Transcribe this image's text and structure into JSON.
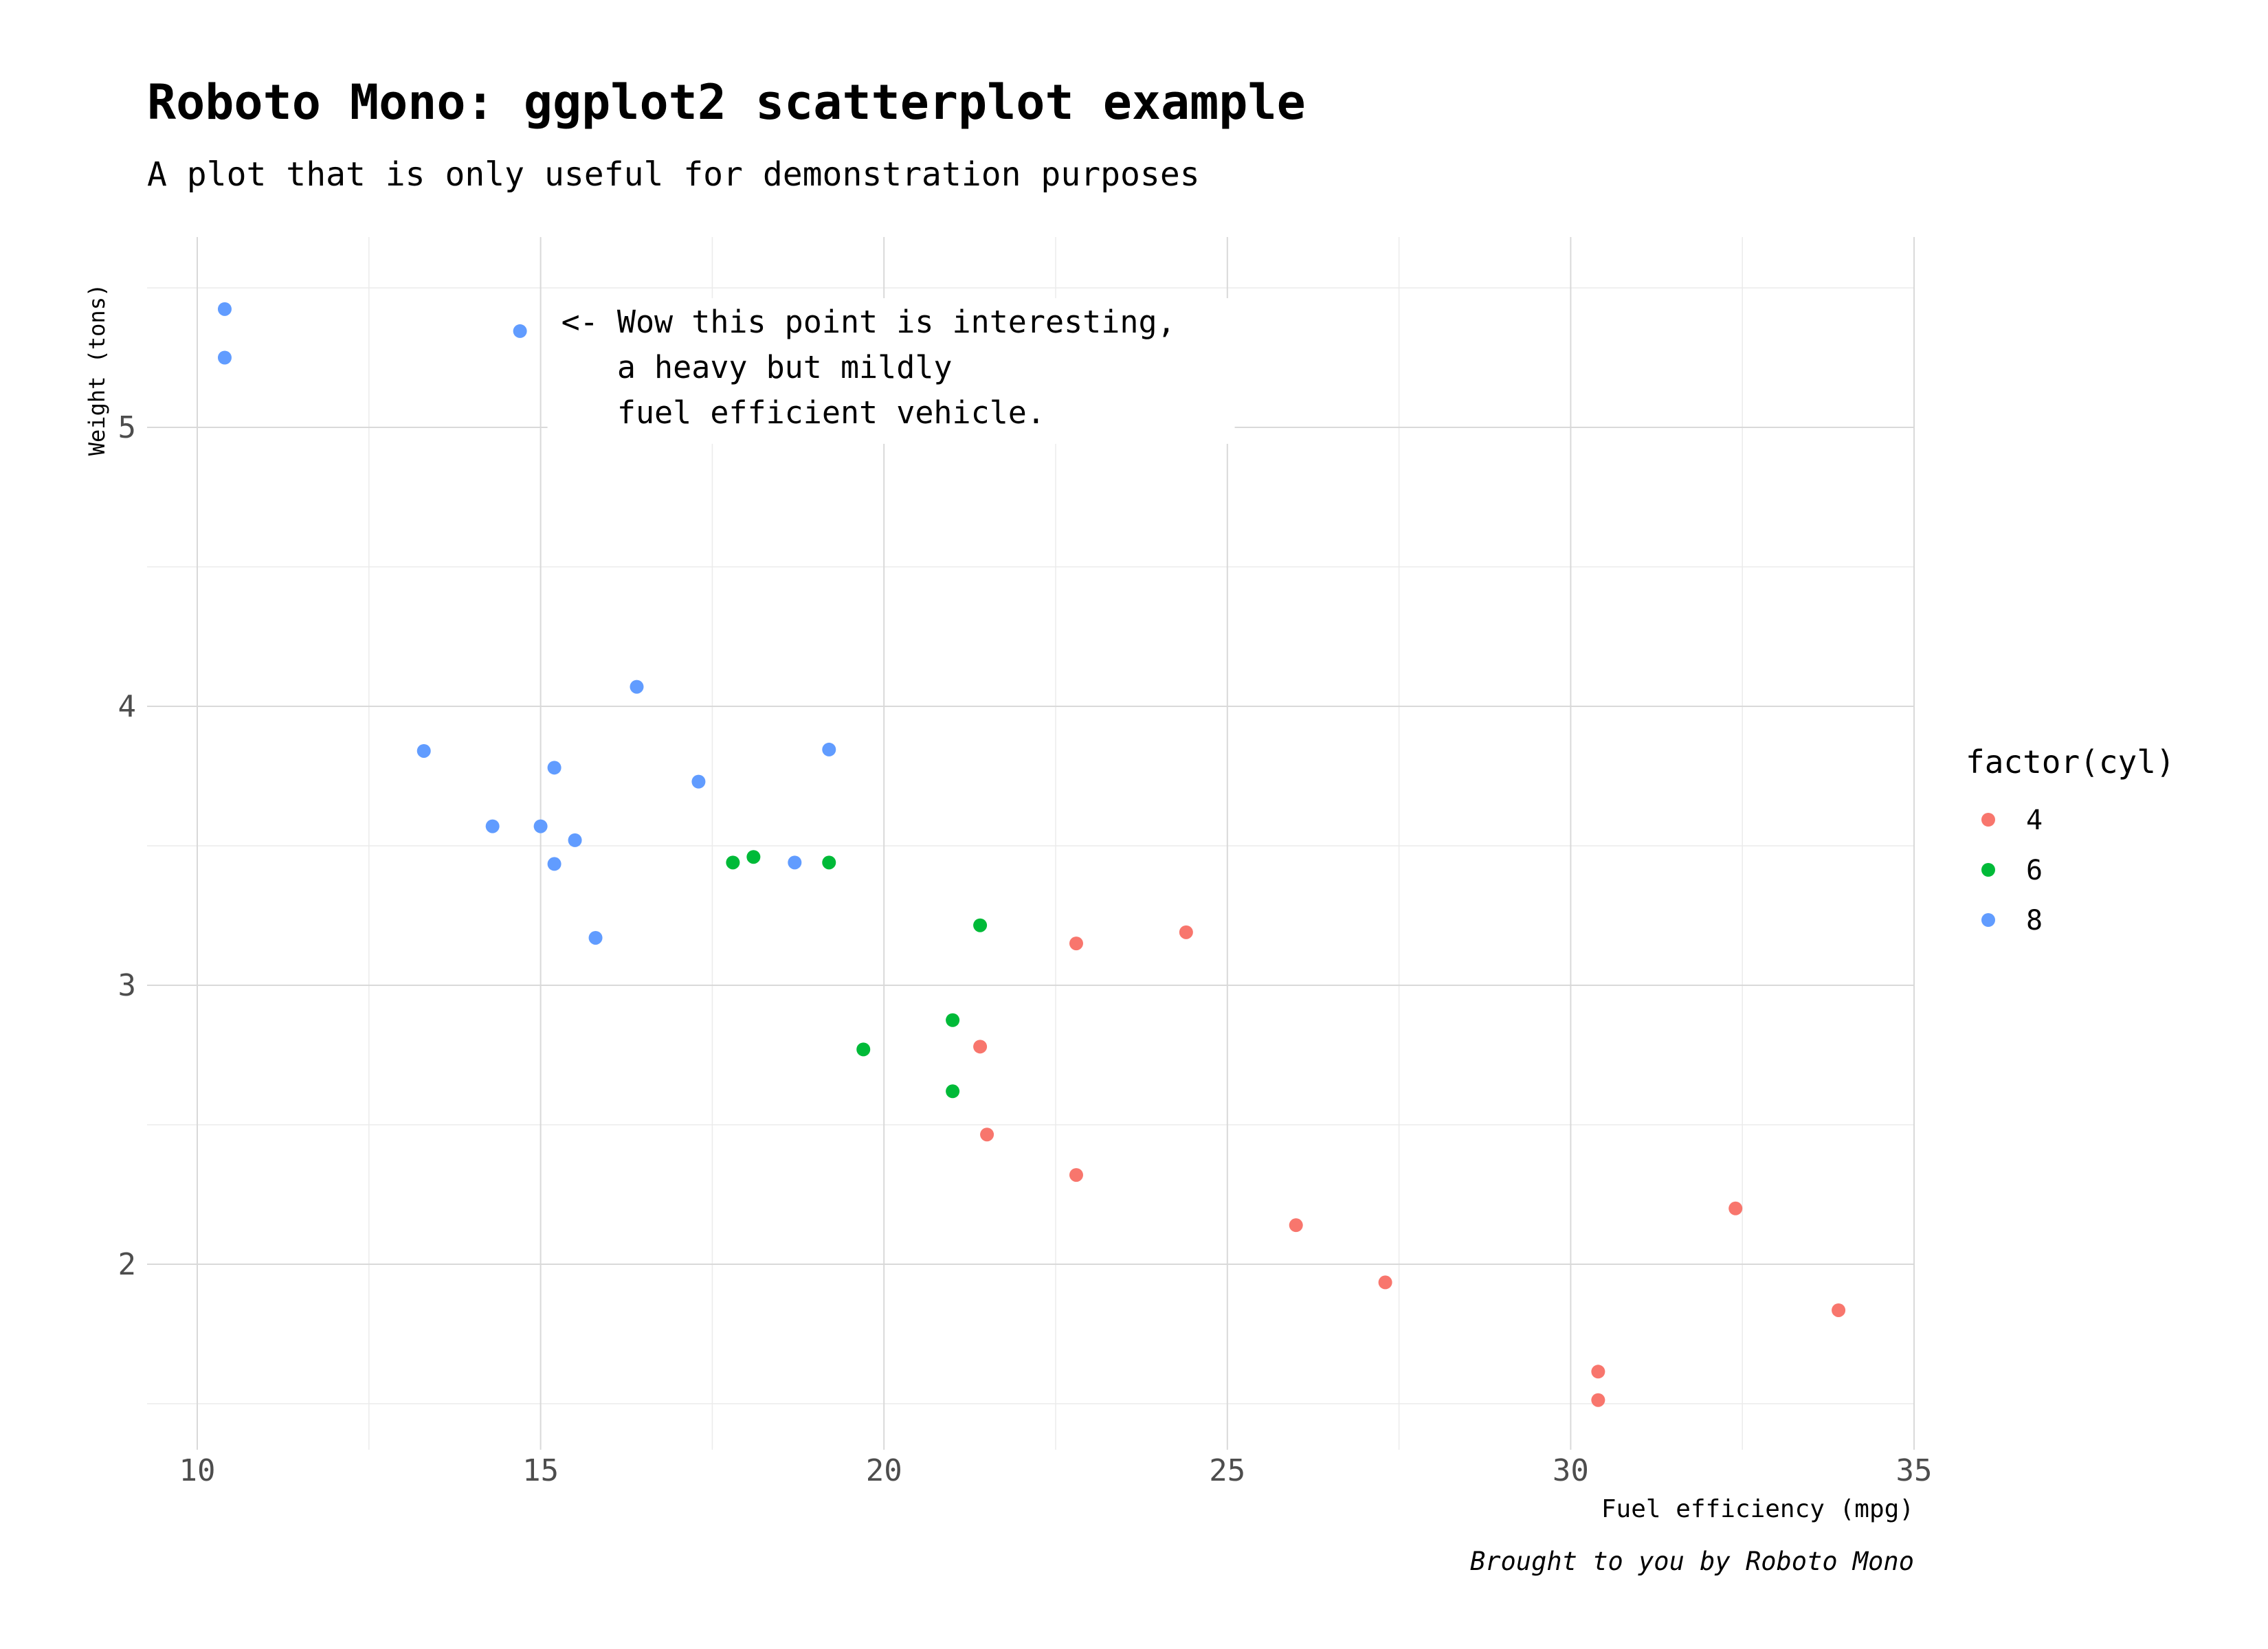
{
  "chart_data": {
    "type": "scatter",
    "title": "Roboto Mono: ggplot2 scatterplot example",
    "subtitle": "A plot that is only useful for demonstration purposes",
    "xlabel": "Fuel efficiency (mpg)",
    "ylabel": "Weight (tons)",
    "caption": "Brought to you by Roboto Mono",
    "xlim": [
      9.25,
      35.0
    ],
    "ylim": [
      1.37,
      5.7
    ],
    "x_ticks": [
      10,
      15,
      20,
      25,
      30,
      35
    ],
    "x_tick_labels": [
      "10",
      "15",
      "20",
      "25",
      "30",
      "35"
    ],
    "y_ticks": [
      2,
      3,
      4,
      5
    ],
    "y_tick_labels": [
      "2",
      "3",
      "4",
      "5"
    ],
    "x_minor": [
      12.5,
      17.5,
      22.5,
      27.5,
      32.5
    ],
    "y_minor": [
      1.5,
      2.5,
      3.5,
      4.5,
      5.5
    ],
    "grid": true,
    "legend": {
      "title": "factor(cyl)",
      "position": "right",
      "entries": [
        {
          "label": "4",
          "color": "#F8766D"
        },
        {
          "label": "6",
          "color": "#00BA38"
        },
        {
          "label": "8",
          "color": "#619CFF"
        }
      ]
    },
    "annotation": {
      "x": 15.2,
      "y": 5.34,
      "lines": [
        "<- Wow this point is interesting,",
        "   a heavy but mildly",
        "   fuel efficient vehicle."
      ]
    },
    "series": [
      {
        "name": "4",
        "color": "#F8766D",
        "points": [
          {
            "x": 22.8,
            "y": 2.32
          },
          {
            "x": 24.4,
            "y": 3.19
          },
          {
            "x": 22.8,
            "y": 3.15
          },
          {
            "x": 32.4,
            "y": 2.2
          },
          {
            "x": 30.4,
            "y": 1.615
          },
          {
            "x": 33.9,
            "y": 1.835
          },
          {
            "x": 21.5,
            "y": 2.465
          },
          {
            "x": 27.3,
            "y": 1.935
          },
          {
            "x": 26.0,
            "y": 2.14
          },
          {
            "x": 30.4,
            "y": 1.513
          },
          {
            "x": 21.4,
            "y": 2.78
          }
        ]
      },
      {
        "name": "6",
        "color": "#00BA38",
        "points": [
          {
            "x": 21.0,
            "y": 2.62
          },
          {
            "x": 21.0,
            "y": 2.875
          },
          {
            "x": 21.4,
            "y": 3.215
          },
          {
            "x": 18.1,
            "y": 3.46
          },
          {
            "x": 19.2,
            "y": 3.44
          },
          {
            "x": 17.8,
            "y": 3.44
          },
          {
            "x": 19.7,
            "y": 2.77
          }
        ]
      },
      {
        "name": "8",
        "color": "#619CFF",
        "points": [
          {
            "x": 18.7,
            "y": 3.44
          },
          {
            "x": 14.3,
            "y": 3.57
          },
          {
            "x": 16.4,
            "y": 4.07
          },
          {
            "x": 17.3,
            "y": 3.73
          },
          {
            "x": 15.2,
            "y": 3.78
          },
          {
            "x": 10.4,
            "y": 5.25
          },
          {
            "x": 10.4,
            "y": 5.424
          },
          {
            "x": 14.7,
            "y": 5.345
          },
          {
            "x": 15.5,
            "y": 3.52
          },
          {
            "x": 15.2,
            "y": 3.435
          },
          {
            "x": 13.3,
            "y": 3.84
          },
          {
            "x": 19.2,
            "y": 3.845
          },
          {
            "x": 15.8,
            "y": 3.17
          },
          {
            "x": 15.0,
            "y": 3.57
          }
        ]
      }
    ]
  }
}
